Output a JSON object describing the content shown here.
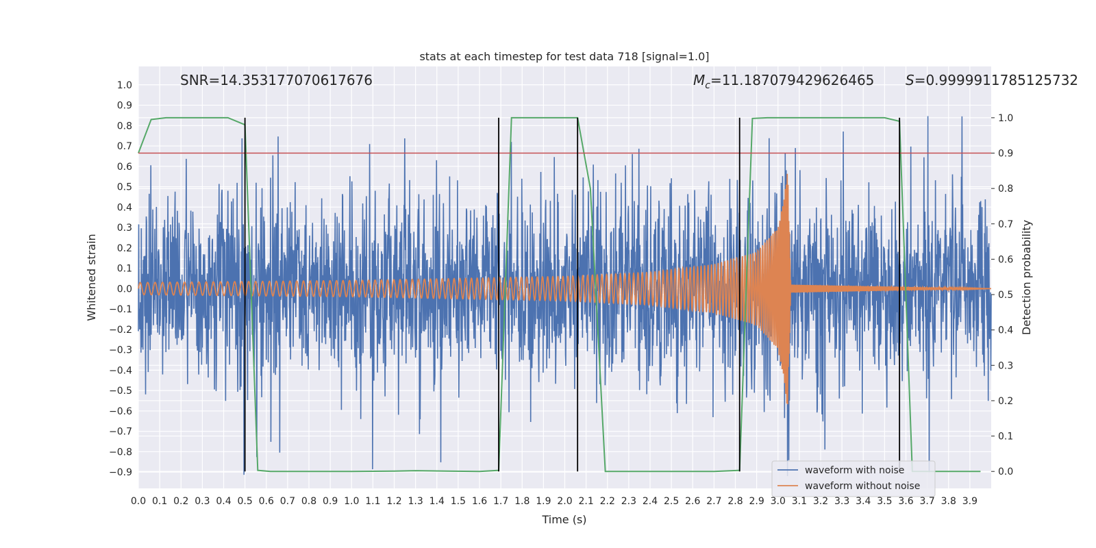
{
  "chart_data": {
    "type": "line",
    "title": "stats at each timestep for test data 718 [signal=1.0]",
    "xlabel": "Time (s)",
    "ylabel_left": "Whitened strain",
    "ylabel_right": "Detection probability",
    "xlim": [
      0.0,
      4.0
    ],
    "ylim_left": [
      -0.98,
      1.09
    ],
    "ylim_right": [
      -0.048,
      1.145
    ],
    "x_ticks": [
      "0.0",
      "0.1",
      "0.2",
      "0.3",
      "0.4",
      "0.5",
      "0.6",
      "0.7",
      "0.8",
      "0.9",
      "1.0",
      "1.1",
      "1.2",
      "1.3",
      "1.4",
      "1.5",
      "1.6",
      "1.7",
      "1.8",
      "1.9",
      "2.0",
      "2.1",
      "2.2",
      "2.3",
      "2.4",
      "2.5",
      "2.6",
      "2.7",
      "2.8",
      "2.9",
      "3.0",
      "3.1",
      "3.2",
      "3.3",
      "3.4",
      "3.5",
      "3.6",
      "3.7",
      "3.8",
      "3.9"
    ],
    "y_ticks_left": [
      "−0.9",
      "−0.8",
      "−0.7",
      "−0.6",
      "−0.5",
      "−0.4",
      "−0.3",
      "−0.2",
      "−0.1",
      "0.0",
      "0.1",
      "0.2",
      "0.3",
      "0.4",
      "0.5",
      "0.6",
      "0.7",
      "0.8",
      "0.9",
      "1.0"
    ],
    "y_ticks_right": [
      "0.0",
      "0.1",
      "0.2",
      "0.3",
      "0.4",
      "0.5",
      "0.6",
      "0.7",
      "0.8",
      "0.9",
      "1.0"
    ],
    "grid": true,
    "legend": {
      "placement": "lower-right",
      "entries": [
        "waveform with noise",
        "waveform without noise"
      ]
    },
    "annotations": {
      "snr": "SNR=14.353177070617676",
      "mc_symbol": "M",
      "mc_sub": "c",
      "mc_value": "=11.187079429626465",
      "s_symbol": "S",
      "s_value": "=0.9999911785125732"
    },
    "series": [
      {
        "name": "waveform with noise",
        "kind": "noisy-strain",
        "noise_std": 0.22,
        "spike_max": 0.9,
        "color": "#4c72b0"
      },
      {
        "name": "waveform without noise",
        "kind": "chirp",
        "t": [
          0.0,
          0.5,
          1.0,
          1.5,
          2.0,
          2.4,
          2.7,
          2.9,
          3.0,
          3.03,
          3.045,
          3.06,
          4.0
        ],
        "amplitude": [
          0.03,
          0.035,
          0.04,
          0.05,
          0.06,
          0.08,
          0.12,
          0.18,
          0.3,
          0.45,
          0.6,
          0.02,
          0.0
        ],
        "f_start": 30,
        "f_end": 420,
        "color": "#dd8452"
      }
    ],
    "detection_probability": {
      "t": [
        0.0,
        0.06,
        0.13,
        0.2,
        0.26,
        0.33,
        0.42,
        0.5,
        0.56,
        0.62,
        0.7,
        0.8,
        1.0,
        1.2,
        1.3,
        1.45,
        1.6,
        1.69,
        1.75,
        1.82,
        1.9,
        2.0,
        2.06,
        2.12,
        2.19,
        2.3,
        2.5,
        2.7,
        2.82,
        2.88,
        2.95,
        3.1,
        3.3,
        3.5,
        3.57,
        3.63,
        3.7,
        3.8,
        3.9,
        3.95
      ],
      "p": [
        0.9,
        0.995,
        1.0,
        1.0,
        1.0,
        1.0,
        1.0,
        0.98,
        0.003,
        0.0,
        0.0,
        0.0,
        0.0,
        0.001,
        0.002,
        0.001,
        0.0,
        0.003,
        1.0,
        1.0,
        1.0,
        1.0,
        1.0,
        0.8,
        0.0,
        0.0,
        0.0,
        0.0,
        0.003,
        0.998,
        1.0,
        1.0,
        1.0,
        1.0,
        0.99,
        0.0,
        0.0,
        0.0,
        0.0,
        0.0
      ],
      "color": "#55a868"
    },
    "threshold": {
      "value": 0.9,
      "color": "#c44e52"
    },
    "event_lines_t": [
      0.5,
      1.69,
      2.06,
      2.82,
      3.57
    ]
  }
}
